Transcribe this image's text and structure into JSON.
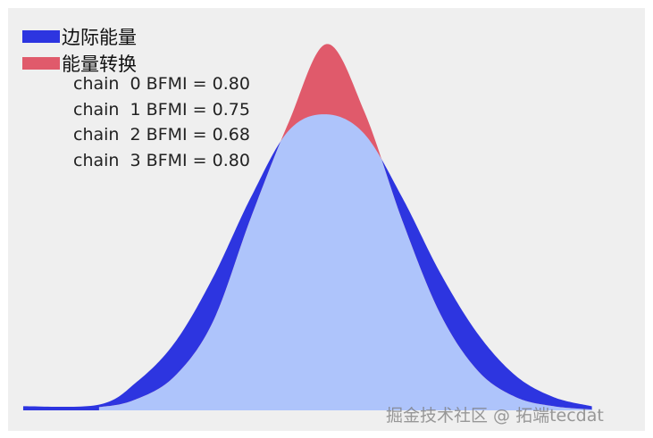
{
  "chart_data": {
    "type": "area",
    "title": "",
    "xlabel": "",
    "ylabel": "",
    "grid": false,
    "legend_position": "top-left",
    "x": [
      -4.0,
      -3.0,
      -2.5,
      -2.0,
      -1.5,
      -1.0,
      -0.5,
      0.0,
      0.5,
      1.0,
      1.5,
      2.0,
      2.5,
      3.0,
      3.5
    ],
    "xlim": [
      -4.2,
      4.2
    ],
    "ylim": [
      0,
      0.48
    ],
    "series": [
      {
        "name": "边际能量",
        "color": "#2d35e0",
        "values": [
          0.005,
          0.007,
          0.035,
          0.083,
          0.162,
          0.26,
          0.342,
          0.362,
          0.338,
          0.26,
          0.168,
          0.093,
          0.042,
          0.016,
          0.005
        ]
      },
      {
        "name": "能量转换",
        "color": "#e05a6b",
        "values": [
          0.0,
          0.004,
          0.014,
          0.042,
          0.108,
          0.235,
          0.352,
          0.448,
          0.365,
          0.232,
          0.118,
          0.048,
          0.016,
          0.005,
          0.001
        ]
      }
    ],
    "overlap_color": "#aec4fb",
    "annotations": [
      "chain  0 BFMI = 0.80",
      "chain  1 BFMI = 0.75",
      "chain  2 BFMI = 0.68",
      "chain  3 BFMI = 0.80"
    ]
  },
  "watermark": "掘金技术社区 @ 拓端tecdat"
}
